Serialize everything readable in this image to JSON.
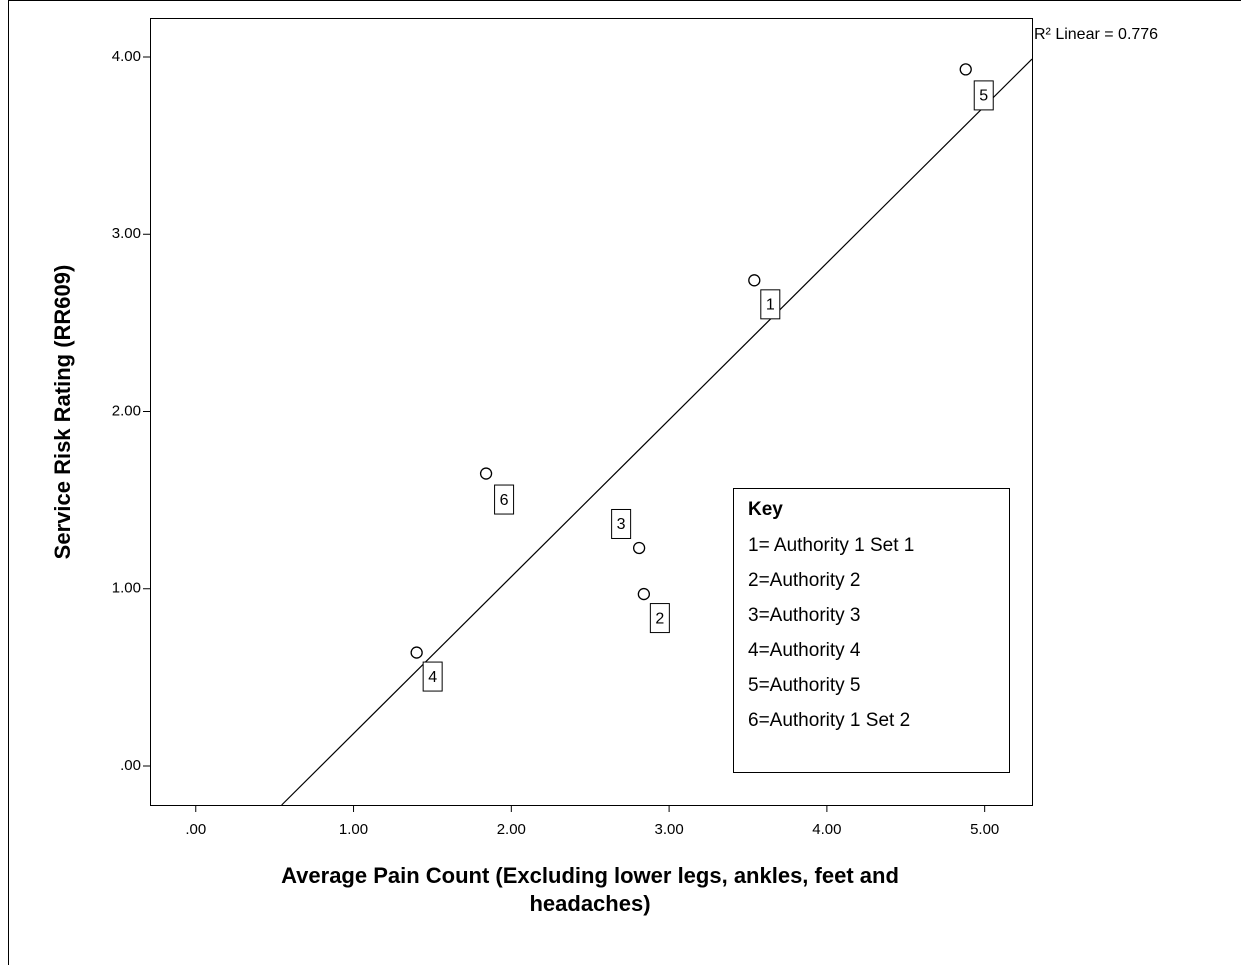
{
  "chart_data": {
    "type": "scatter",
    "x_label": "Average Pain Count (Excluding lower legs, ankles, feet and headaches)",
    "x_label_lines": [
      "Average Pain Count (Excluding lower legs, ankles, feet and",
      "headaches)"
    ],
    "y_label": "Service Risk Rating (RR609)",
    "x": [
      3.54,
      2.84,
      2.81,
      1.4,
      4.88,
      1.84
    ],
    "values": [
      2.74,
      0.97,
      1.23,
      0.64,
      3.93,
      1.65
    ],
    "point_labels": [
      "1",
      "2",
      "3",
      "4",
      "5",
      "6"
    ],
    "regression_line": {
      "slope": 0.885,
      "intercept": -0.702
    },
    "annotation": "R² Linear = 0.776",
    "key_title": "Key",
    "key_entries": [
      "1= Authority 1 Set 1",
      "2=Authority 2",
      "3=Authority 3",
      "4=Authority 4",
      "5=Authority 5",
      "6=Authority 1 Set 2"
    ],
    "xlim": [
      -0.29,
      5.3
    ],
    "ylim": [
      -0.22,
      4.22
    ],
    "xticks": [
      {
        "value": 0,
        "label": ".00"
      },
      {
        "value": 1,
        "label": "1.00"
      },
      {
        "value": 2,
        "label": "2.00"
      },
      {
        "value": 3,
        "label": "3.00"
      },
      {
        "value": 4,
        "label": "4.00"
      },
      {
        "value": 5,
        "label": "5.00"
      }
    ],
    "yticks": [
      {
        "value": 0,
        "label": ".00"
      },
      {
        "value": 1,
        "label": "1.00"
      },
      {
        "value": 2,
        "label": "2.00"
      },
      {
        "value": 3,
        "label": "3.00"
      },
      {
        "value": 4,
        "label": "4.00"
      }
    ],
    "color": "#000000"
  }
}
